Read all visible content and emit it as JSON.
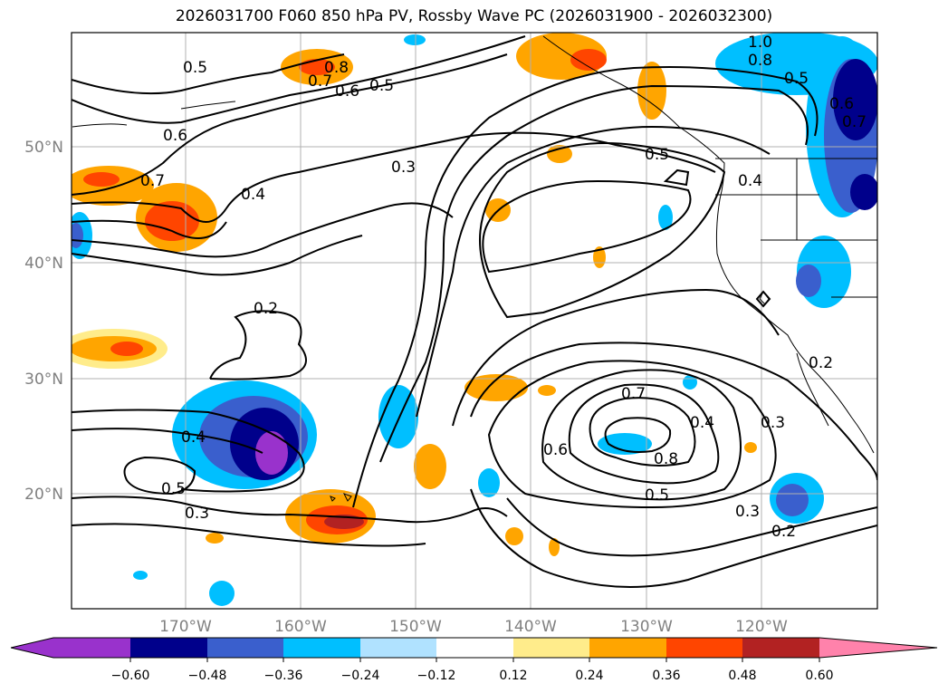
{
  "title": "2026031700 F060 850 hPa PV, Rossby Wave PC (2026031900 - 2026032300)",
  "map": {
    "lon_ticks": [
      "170°W",
      "160°W",
      "150°W",
      "140°W",
      "130°W",
      "120°W"
    ],
    "lat_ticks": [
      "50°N",
      "40°N",
      "30°N",
      "20°N"
    ]
  },
  "contour_labels": [
    "0.5",
    "0.7",
    "0.8",
    "0.6",
    "0.5",
    "1.0",
    "0.8",
    "0.5",
    "0.6",
    "0.7",
    "0.6",
    "0.7",
    "0.4",
    "0.3",
    "0.5",
    "0.4",
    "0.2",
    "0.4",
    "0.5",
    "0.3",
    "0.7",
    "0.6",
    "0.4",
    "0.8",
    "0.3",
    "0.5",
    "0.3",
    "0.2",
    "0.2"
  ],
  "colorbar": {
    "ticks": [
      "−0.60",
      "−0.48",
      "−0.36",
      "−0.24",
      "−0.12",
      "0.12",
      "0.24",
      "0.36",
      "0.48",
      "0.60"
    ],
    "colors": [
      "#9932cc",
      "#00008b",
      "#3a5fcd",
      "#00bfff",
      "#b0e2ff",
      "#ffffff",
      "#ffec8b",
      "#ffa500",
      "#ff4500",
      "#b22222",
      "#ff82ab"
    ]
  }
}
